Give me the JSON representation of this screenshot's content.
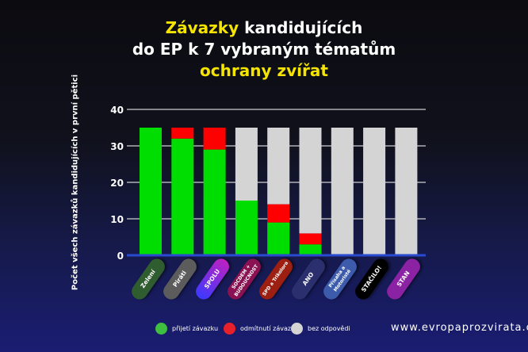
{
  "chart_data": {
    "type": "bar",
    "stacked": true,
    "title_parts": [
      "Závazky",
      " kandidujících",
      "do EP k 7 vybraným tématům",
      "ochrany zvířat"
    ],
    "ylabel": "Počet všech závazků kandidujících v první pětici",
    "ylim": [
      0,
      40
    ],
    "yticks": [
      0,
      10,
      20,
      30,
      40
    ],
    "grid": true,
    "legend_position": "bottom",
    "categories": [
      "Zelení",
      "Piráti",
      "SPOLU",
      "SOCDEM + BUDOUCNOST",
      "SPD a Trikolora",
      "ANO",
      "Přísaha a Motoristé",
      "STAČILO!",
      "STAN"
    ],
    "category_colors": [
      "#2f5d2f",
      "#5c5c5c",
      "#9a1fc8",
      "#8a1252",
      "#9c1f12",
      "#2b2f6e",
      "#3c5cab",
      "#000000",
      "#8b22a4"
    ],
    "series": [
      {
        "name": "přijetí závazku",
        "color": "#00dd00",
        "values": [
          35,
          32,
          29,
          15,
          9,
          3,
          0,
          0,
          0
        ]
      },
      {
        "name": "odmítnutí závazku",
        "color": "#ff0000",
        "values": [
          0,
          3,
          6,
          0,
          5,
          3,
          0,
          0,
          0
        ]
      },
      {
        "name": "bez odpovědi",
        "color": "#d4d4d4",
        "values": [
          0,
          0,
          0,
          20,
          21,
          29,
          35,
          35,
          35
        ]
      }
    ]
  },
  "footer": {
    "url": "www.evropaprozvirata.cz"
  },
  "colors": {
    "accent": "#f5e400"
  }
}
